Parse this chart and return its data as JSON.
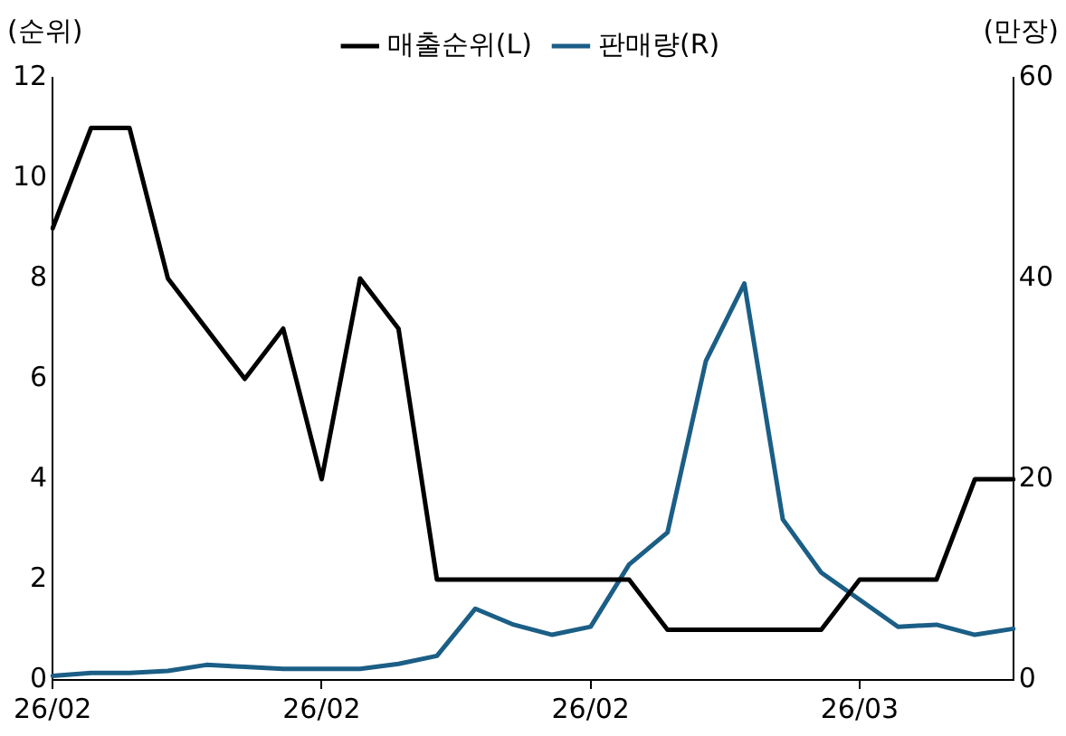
{
  "chart_data": {
    "type": "line",
    "ylabel": "(순위)",
    "y2label": "(만장)",
    "categories": [
      "26/02",
      null,
      null,
      null,
      null,
      null,
      null,
      "26/02",
      null,
      null,
      null,
      null,
      null,
      null,
      "26/02",
      null,
      null,
      null,
      null,
      null,
      null,
      "26/03",
      null,
      null,
      null,
      null
    ],
    "series": [
      {
        "name": "매출순위(L)",
        "color": "#000000",
        "values": [
          9,
          11,
          11,
          8,
          7,
          6,
          7,
          4,
          8,
          7,
          2,
          2,
          2,
          2,
          2,
          2,
          1,
          1,
          1,
          1,
          1,
          2,
          2,
          2,
          4,
          4
        ]
      },
      {
        "name": "판매량(R)",
        "color": "#1b5e86",
        "axis": "y2",
        "values": [
          0.4,
          0.7,
          0.7,
          0.9,
          1.5,
          1.3,
          1.1,
          1.1,
          1.1,
          1.6,
          2.4,
          7.1,
          5.5,
          4.5,
          5.3,
          11.5,
          14.7,
          31.8,
          39.5,
          16,
          10.7,
          8,
          5.3,
          5.5,
          4.5,
          5.1
        ]
      }
    ],
    "ylim": [
      0,
      12
    ],
    "yticks": [
      0,
      2,
      4,
      6,
      8,
      10,
      12
    ],
    "y2lim": [
      0,
      60
    ],
    "y2ticks": [
      0,
      20,
      40,
      60
    ],
    "grid": false,
    "legend": "top",
    "marker": "none",
    "line_style": "solid"
  }
}
